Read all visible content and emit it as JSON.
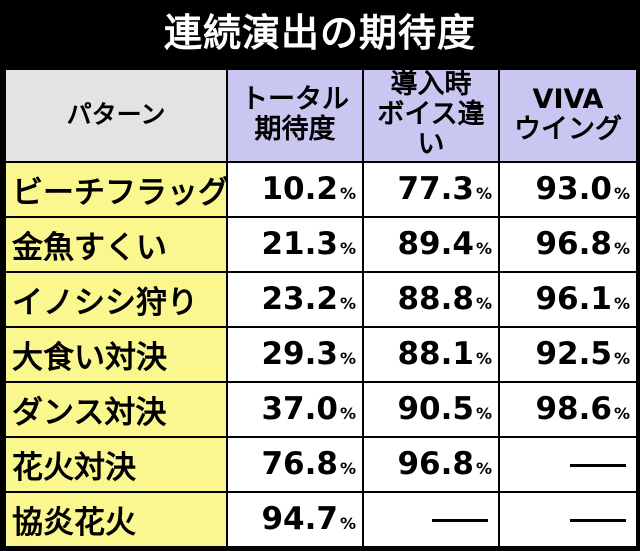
{
  "title": "連続演出の期待度",
  "headers": {
    "pattern": "パターン",
    "total": [
      "トータル",
      "期待度"
    ],
    "voice": [
      "導入時",
      "ボイス違い"
    ],
    "viva": [
      "VIVA",
      "ウイング"
    ]
  },
  "percent_sign": "%",
  "rows": [
    {
      "name": "ビーチフラッグ",
      "total": "10.2",
      "voice": "77.3",
      "viva": "93.0"
    },
    {
      "name": "金魚すくい",
      "total": "21.3",
      "voice": "89.4",
      "viva": "96.8"
    },
    {
      "name": "イノシシ狩り",
      "total": "23.2",
      "voice": "88.8",
      "viva": "96.1"
    },
    {
      "name": "大食い対決",
      "total": "29.3",
      "voice": "88.1",
      "viva": "92.5"
    },
    {
      "name": "ダンス対決",
      "total": "37.0",
      "voice": "90.5",
      "viva": "98.6"
    },
    {
      "name": "花火対決",
      "total": "76.8",
      "voice": "96.8",
      "viva": null
    },
    {
      "name": "協炎花火",
      "total": "94.7",
      "voice": null,
      "viva": null
    }
  ]
}
